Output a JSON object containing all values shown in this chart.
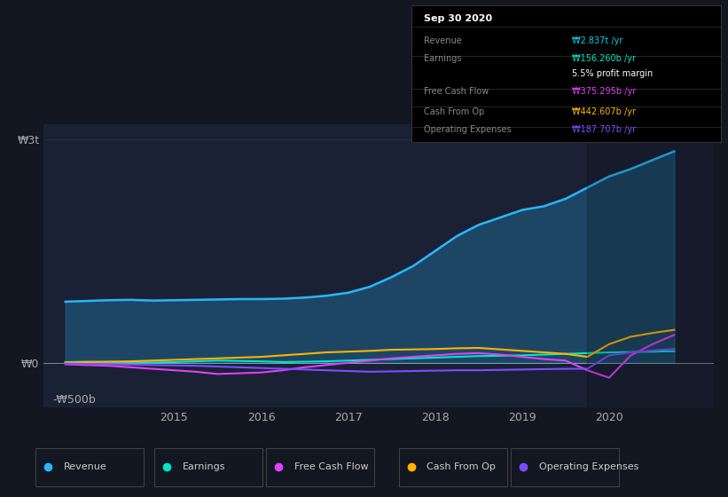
{
  "background_color": "#131722",
  "plot_bg_color": "#1a2135",
  "ylabel_w3t": "₩3t",
  "ylabel_w0": "₩0",
  "ylabel_wneg": "-₩500b",
  "info_box": {
    "title": "Sep 30 2020",
    "rows": [
      {
        "label": "Revenue",
        "value": "₩2.837t /yr",
        "value_color": "#00d4e8"
      },
      {
        "label": "Earnings",
        "value": "₩156.260b /yr",
        "value_color": "#00e5c8"
      },
      {
        "label": "",
        "value": "5.5% profit margin",
        "value_color": "#ffffff"
      },
      {
        "label": "Free Cash Flow",
        "value": "₩375.295b /yr",
        "value_color": "#e040fb"
      },
      {
        "label": "Cash From Op",
        "value": "₩442.607b /yr",
        "value_color": "#ffb300"
      },
      {
        "label": "Operating Expenses",
        "value": "₩187.707b /yr",
        "value_color": "#7c4dff"
      }
    ]
  },
  "ylim": [
    -600,
    3200
  ],
  "xlim": [
    2013.5,
    2021.2
  ],
  "colors": {
    "revenue": "#29b6f6",
    "earnings": "#00e5c8",
    "free_cash_flow": "#e040fb",
    "cash_from_op": "#ffb300",
    "operating_expenses": "#7c4dff"
  },
  "legend": [
    {
      "label": "Revenue",
      "color": "#29b6f6"
    },
    {
      "label": "Earnings",
      "color": "#00e5c8"
    },
    {
      "label": "Free Cash Flow",
      "color": "#e040fb"
    },
    {
      "label": "Cash From Op",
      "color": "#ffb300"
    },
    {
      "label": "Operating Expenses",
      "color": "#7c4dff"
    }
  ],
  "revenue": {
    "x": [
      2013.75,
      2014.0,
      2014.25,
      2014.5,
      2014.75,
      2015.0,
      2015.25,
      2015.5,
      2015.75,
      2016.0,
      2016.25,
      2016.5,
      2016.75,
      2017.0,
      2017.25,
      2017.5,
      2017.75,
      2018.0,
      2018.25,
      2018.5,
      2018.75,
      2019.0,
      2019.25,
      2019.5,
      2019.75,
      2020.0,
      2020.25,
      2020.5,
      2020.75
    ],
    "y": [
      820,
      830,
      840,
      845,
      835,
      840,
      845,
      850,
      855,
      855,
      860,
      875,
      900,
      940,
      1020,
      1150,
      1300,
      1500,
      1700,
      1850,
      1950,
      2050,
      2100,
      2200,
      2350,
      2500,
      2600,
      2720,
      2837
    ]
  },
  "earnings": {
    "x": [
      2013.75,
      2014.0,
      2014.25,
      2014.5,
      2014.75,
      2015.0,
      2015.25,
      2015.5,
      2015.75,
      2016.0,
      2016.25,
      2016.5,
      2016.75,
      2017.0,
      2017.25,
      2017.5,
      2017.75,
      2018.0,
      2018.25,
      2018.5,
      2018.75,
      2019.0,
      2019.25,
      2019.5,
      2019.75,
      2020.0,
      2020.25,
      2020.5,
      2020.75
    ],
    "y": [
      10,
      15,
      12,
      8,
      5,
      10,
      20,
      30,
      25,
      20,
      10,
      15,
      20,
      30,
      40,
      50,
      60,
      70,
      80,
      90,
      95,
      100,
      110,
      120,
      130,
      140,
      145,
      150,
      156
    ]
  },
  "free_cash_flow": {
    "x": [
      2013.75,
      2014.0,
      2014.25,
      2014.5,
      2014.75,
      2015.0,
      2015.25,
      2015.5,
      2015.75,
      2016.0,
      2016.25,
      2016.5,
      2016.75,
      2017.0,
      2017.25,
      2017.5,
      2017.75,
      2018.0,
      2018.25,
      2018.5,
      2018.75,
      2019.0,
      2019.25,
      2019.5,
      2019.75,
      2020.0,
      2020.25,
      2020.5,
      2020.75
    ],
    "y": [
      -20,
      -30,
      -40,
      -60,
      -80,
      -100,
      -120,
      -150,
      -140,
      -130,
      -100,
      -60,
      -30,
      0,
      30,
      60,
      80,
      100,
      120,
      130,
      110,
      80,
      50,
      30,
      -100,
      -200,
      100,
      250,
      375
    ]
  },
  "cash_from_op": {
    "x": [
      2013.75,
      2014.0,
      2014.25,
      2014.5,
      2014.75,
      2015.0,
      2015.25,
      2015.5,
      2015.75,
      2016.0,
      2016.25,
      2016.5,
      2016.75,
      2017.0,
      2017.25,
      2017.5,
      2017.75,
      2018.0,
      2018.25,
      2018.5,
      2018.75,
      2019.0,
      2019.25,
      2019.5,
      2019.75,
      2020.0,
      2020.25,
      2020.5,
      2020.75
    ],
    "y": [
      5,
      10,
      15,
      20,
      30,
      40,
      50,
      60,
      70,
      80,
      100,
      120,
      140,
      150,
      160,
      175,
      180,
      185,
      195,
      200,
      180,
      160,
      140,
      120,
      80,
      250,
      350,
      400,
      442
    ]
  },
  "operating_expenses": {
    "x": [
      2013.75,
      2014.0,
      2014.25,
      2014.5,
      2014.75,
      2015.0,
      2015.25,
      2015.5,
      2015.75,
      2016.0,
      2016.25,
      2016.5,
      2016.75,
      2017.0,
      2017.25,
      2017.5,
      2017.75,
      2018.0,
      2018.25,
      2018.5,
      2018.75,
      2019.0,
      2019.25,
      2019.5,
      2019.75,
      2020.0,
      2020.25,
      2020.5,
      2020.75
    ],
    "y": [
      -10,
      -15,
      -20,
      -25,
      -30,
      -35,
      -40,
      -50,
      -60,
      -70,
      -80,
      -90,
      -100,
      -110,
      -120,
      -115,
      -110,
      -105,
      -100,
      -100,
      -95,
      -90,
      -85,
      -80,
      -80,
      100,
      140,
      165,
      187
    ]
  }
}
